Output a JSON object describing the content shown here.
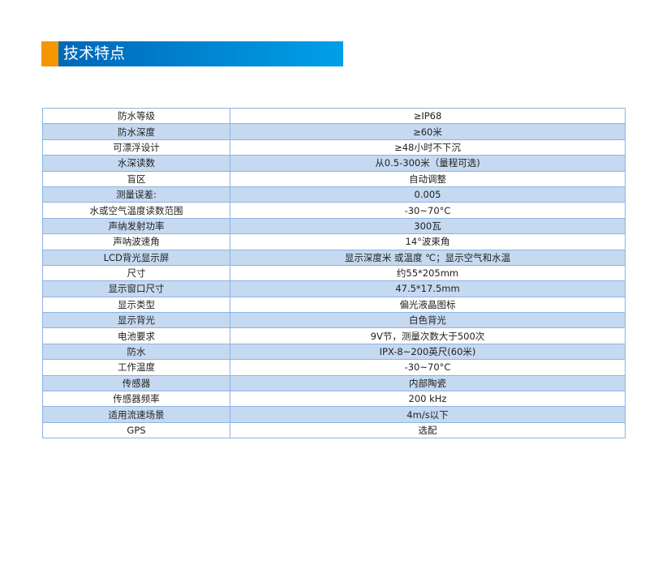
{
  "header": {
    "title": "技术特点",
    "accent_color": "#f39800",
    "bar_color": "#0068b7"
  },
  "table": {
    "rows": [
      {
        "k": "防水等级",
        "v": "≥IP68"
      },
      {
        "k": "防水深度",
        "v": "≥60米"
      },
      {
        "k": "可漂浮设计",
        "v": "≥48小时不下沉"
      },
      {
        "k": "水深读数",
        "v": "从0.5-300米（量程可选)"
      },
      {
        "k": "盲区",
        "v": "自动调整"
      },
      {
        "k": "测量误差:",
        "v": "0.005"
      },
      {
        "k": "水或空气温度读数范围",
        "v": "-30~70°C"
      },
      {
        "k": "声纳发射功率",
        "v": "300瓦"
      },
      {
        "k": "声呐波速角",
        "v": "14°波束角"
      },
      {
        "k": "LCD背光显示屏",
        "v": "显示深度米 或温度 ℃；显示空气和水温"
      },
      {
        "k": "尺寸",
        "v": "约55*205mm"
      },
      {
        "k": "显示窗口尺寸",
        "v": "47.5*17.5mm"
      },
      {
        "k": "显示类型",
        "v": "偏光液晶图标"
      },
      {
        "k": "显示背光",
        "v": "白色背光"
      },
      {
        "k": "电池要求",
        "v": "9V节，测量次数大于500次"
      },
      {
        "k": "防水",
        "v": "IPX-8~200英尺(60米)"
      },
      {
        "k": "工作温度",
        "v": "-30~70°C"
      },
      {
        "k": "传感器",
        "v": "内部陶瓷"
      },
      {
        "k": "传感器频率",
        "v": "200 kHz"
      },
      {
        "k": "适用流速场景",
        "v": "4m/s以下"
      },
      {
        "k": "GPS",
        "v": "选配"
      }
    ]
  }
}
